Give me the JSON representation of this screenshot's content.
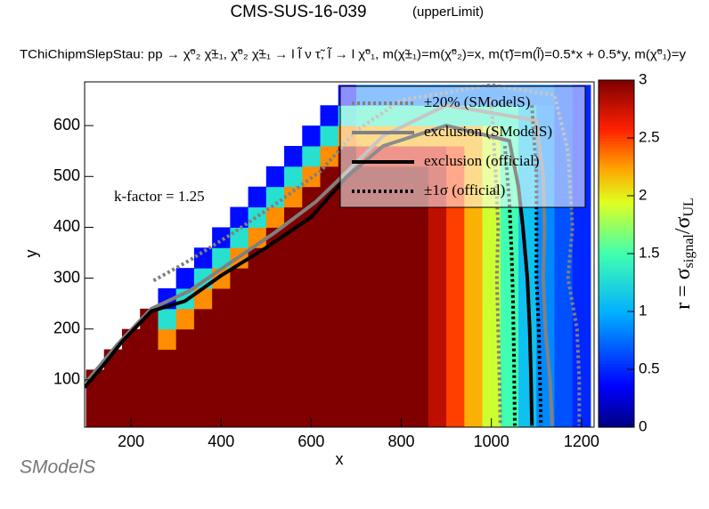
{
  "chart_data": {
    "type": "heatmap",
    "title": "CMS-SUS-16-039",
    "subtitle": "(upperLimit)",
    "process": "TChiChipmSlepStau: pp → χ̃⁰₂ χ̃±₁, χ̃⁰₂ χ̃±₁ → l l̃ ν τ̃, l̃ → l χ̃⁰₁, m(χ̃±₁)=m(χ̃⁰₂)=x, m(τ̃)=m(l̃)=0.5*x + 0.5*y, m(χ̃⁰₁)=y",
    "x_label": "x",
    "y_label": "y",
    "z_label": [
      "r = σ",
      "signal",
      "/σ",
      "UL"
    ],
    "annotation": "k-factor = 1.25",
    "logo": "SModelS",
    "xlim": [
      97,
      1228
    ],
    "ylim": [
      7,
      686
    ],
    "zlim": [
      0,
      3
    ],
    "xticks": [
      200,
      400,
      600,
      800,
      1000,
      1200
    ],
    "yticks": [
      100,
      200,
      300,
      400,
      500,
      600
    ],
    "zticks": [
      0,
      0.5,
      1,
      1.5,
      2,
      2.5,
      3
    ],
    "colormap": "rainbow",
    "heatmap": {
      "xbins": [
        100,
        140,
        180,
        220,
        260,
        300,
        340,
        380,
        420,
        460,
        500,
        540,
        580,
        620,
        660,
        700,
        740,
        780,
        820,
        860,
        900,
        940,
        980,
        1020,
        1060,
        1100,
        1140,
        1180,
        1220
      ],
      "ybins": [
        0,
        40,
        80,
        120,
        160,
        200,
        240,
        280,
        320,
        360,
        400,
        440,
        480,
        520,
        560,
        600,
        640,
        680
      ],
      "values": [
        [
          3,
          3,
          3,
          3,
          3,
          3,
          3,
          3,
          3,
          3,
          3,
          3,
          3,
          3,
          3,
          3,
          3,
          3,
          3,
          2.8,
          2.5,
          2.2,
          1.9,
          1.5,
          1.1,
          0.85,
          0.65,
          0.5
        ],
        [
          3,
          3,
          3,
          3,
          3,
          3,
          3,
          3,
          3,
          3,
          3,
          3,
          3,
          3,
          3,
          3,
          3,
          3,
          3,
          2.8,
          2.5,
          2.2,
          1.9,
          1.5,
          1.1,
          0.85,
          0.65,
          0.5
        ],
        [
          3,
          3,
          3,
          3,
          3,
          3,
          3,
          3,
          3,
          3,
          3,
          3,
          3,
          3,
          3,
          3,
          3,
          3,
          3,
          2.8,
          2.5,
          2.2,
          1.9,
          1.5,
          1.1,
          0.85,
          0.65,
          0.5
        ],
        [
          null,
          3,
          3,
          3,
          3,
          3,
          3,
          3,
          3,
          3,
          3,
          3,
          3,
          3,
          3,
          3,
          3,
          3,
          3,
          2.8,
          2.5,
          2.2,
          1.9,
          1.5,
          1.1,
          0.85,
          0.65,
          0.5
        ],
        [
          null,
          null,
          3,
          3,
          2.3,
          3,
          3,
          3,
          3,
          3,
          3,
          3,
          3,
          3,
          3,
          3,
          3,
          3,
          3,
          2.8,
          2.5,
          2.2,
          1.9,
          1.5,
          1.1,
          0.85,
          0.65,
          0.5
        ],
        [
          null,
          null,
          null,
          3,
          1.3,
          2.3,
          3,
          3,
          3,
          3,
          3,
          3,
          3,
          3,
          3,
          3,
          3,
          3,
          3,
          2.8,
          2.5,
          2.2,
          1.9,
          1.5,
          1.1,
          0.85,
          0.65,
          0.5
        ],
        [
          null,
          null,
          null,
          null,
          0.4,
          1.3,
          2.3,
          3,
          3,
          3,
          3,
          3,
          3,
          3,
          3,
          3,
          3,
          3,
          3,
          2.8,
          2.5,
          2.2,
          1.9,
          1.5,
          1.1,
          0.85,
          0.65,
          0.5
        ],
        [
          null,
          null,
          null,
          null,
          null,
          0.4,
          1.3,
          2.3,
          3,
          3,
          3,
          3,
          3,
          3,
          3,
          3,
          3,
          3,
          3,
          2.8,
          2.5,
          2.2,
          1.9,
          1.5,
          1.1,
          0.85,
          0.65,
          0.5
        ],
        [
          null,
          null,
          null,
          null,
          null,
          null,
          0.4,
          1.3,
          2.3,
          3,
          3,
          3,
          3,
          3,
          3,
          3,
          3,
          3,
          3,
          2.8,
          2.5,
          2.2,
          1.9,
          1.5,
          1.1,
          0.85,
          0.65,
          0.5
        ],
        [
          null,
          null,
          null,
          null,
          null,
          null,
          null,
          0.4,
          1.3,
          2.3,
          3,
          3,
          3,
          3,
          3,
          3,
          3,
          3,
          3,
          2.8,
          2.5,
          2.2,
          1.9,
          1.5,
          1.1,
          0.85,
          0.65,
          0.5
        ],
        [
          null,
          null,
          null,
          null,
          null,
          null,
          null,
          null,
          0.4,
          1.3,
          2.3,
          3,
          3,
          3,
          3,
          3,
          3,
          3,
          3,
          2.8,
          2.5,
          2.2,
          1.9,
          1.5,
          1.1,
          0.85,
          0.65,
          0.5
        ],
        [
          null,
          null,
          null,
          null,
          null,
          null,
          null,
          null,
          null,
          0.4,
          1.3,
          2.3,
          3,
          3,
          3,
          3,
          3,
          3,
          3,
          2.8,
          2.5,
          2.2,
          1.9,
          1.5,
          1.1,
          0.85,
          0.65,
          0.5
        ],
        [
          null,
          null,
          null,
          null,
          null,
          null,
          null,
          null,
          null,
          null,
          0.4,
          1.3,
          2.3,
          3,
          3,
          3,
          3,
          3,
          3,
          2.8,
          2.5,
          2.2,
          1.9,
          1.5,
          1.1,
          0.85,
          0.65,
          0.5
        ],
        [
          null,
          null,
          null,
          null,
          null,
          null,
          null,
          null,
          null,
          null,
          null,
          0.4,
          1.3,
          2.3,
          3,
          2.7,
          2.7,
          2.7,
          2.7,
          2.7,
          2.5,
          2.2,
          1.9,
          1.5,
          1.1,
          0.85,
          0.65,
          0.5
        ],
        [
          null,
          null,
          null,
          null,
          null,
          null,
          null,
          null,
          null,
          null,
          null,
          null,
          0.4,
          1.3,
          2.3,
          2.2,
          2.2,
          2.2,
          2.2,
          2.2,
          2.2,
          2.2,
          1.9,
          1.5,
          1.1,
          0.85,
          0.65,
          0.5
        ],
        [
          null,
          null,
          null,
          null,
          null,
          null,
          null,
          null,
          null,
          null,
          null,
          null,
          null,
          0.4,
          1.3,
          1.4,
          1.4,
          1.4,
          1.4,
          1.4,
          1.4,
          1.4,
          1.4,
          1.4,
          1.1,
          0.85,
          0.65,
          0.5
        ],
        [
          null,
          null,
          null,
          null,
          null,
          null,
          null,
          null,
          null,
          null,
          null,
          null,
          null,
          null,
          0.4,
          0.8,
          0.8,
          0.8,
          0.8,
          0.8,
          0.8,
          0.8,
          0.8,
          0.8,
          0.8,
          0.8,
          0.65,
          0.5
        ]
      ]
    },
    "series": [
      {
        "name": "±20% (SModelS)",
        "color": "#808080",
        "style": "dotted",
        "width": 4,
        "curves": [
          {
            "x": [
              250,
              330,
              420,
              520,
              620,
              700,
              800,
              1000,
              1140,
              1170,
              1180,
              1170,
              1190,
              1195,
              1195
            ],
            "y": [
              295,
              335,
              385,
              445,
              510,
              590,
              650,
              680,
              660,
              550,
              400,
              300,
              200,
              100,
              10
            ]
          },
          {
            "x": [
              1000,
              1010,
              1015,
              1012,
              1015,
              1018,
              1020
            ],
            "y": [
              650,
              500,
              400,
              300,
              200,
              100,
              10
            ]
          }
        ]
      },
      {
        "name": "exclusion (SModelS)",
        "color": "#808080",
        "style": "solid",
        "width": 4,
        "curves": [
          {
            "x": [
              100,
              170,
              245,
              330,
              420,
              520,
              610,
              680,
              760,
              900,
              1100,
              1115,
              1118,
              1115,
              1120,
              1130,
              1135
            ],
            "y": [
              95,
              170,
              240,
              275,
              330,
              390,
              450,
              510,
              580,
              640,
              610,
              500,
              400,
              300,
              200,
              100,
              10
            ]
          }
        ]
      },
      {
        "name": "exclusion (official)",
        "color": "#000000",
        "style": "solid",
        "width": 4,
        "curves": [
          {
            "x": [
              97,
              140,
              180,
              245,
              320,
              400,
              500,
              600,
              680,
              760,
              900,
              1040,
              1060,
              1070,
              1080,
              1085,
              1088,
              1090
            ],
            "y": [
              85,
              130,
              175,
              235,
              255,
              305,
              360,
              420,
              500,
              560,
              600,
              570,
              480,
              400,
              300,
              200,
              100,
              10
            ]
          }
        ]
      },
      {
        "name": "±1σ (official)",
        "color": "#000000",
        "style": "dotted",
        "width": 4,
        "curves": [
          {
            "x": [
              1090,
              1100,
              1100,
              1100,
              1105,
              1108,
              1110
            ],
            "y": [
              640,
              500,
              400,
              300,
              200,
              100,
              10
            ]
          },
          {
            "x": [
              1030,
              1040,
              1045,
              1048,
              1050,
              1052
            ],
            "y": [
              560,
              450,
              350,
              250,
              150,
              10
            ]
          }
        ]
      }
    ]
  }
}
